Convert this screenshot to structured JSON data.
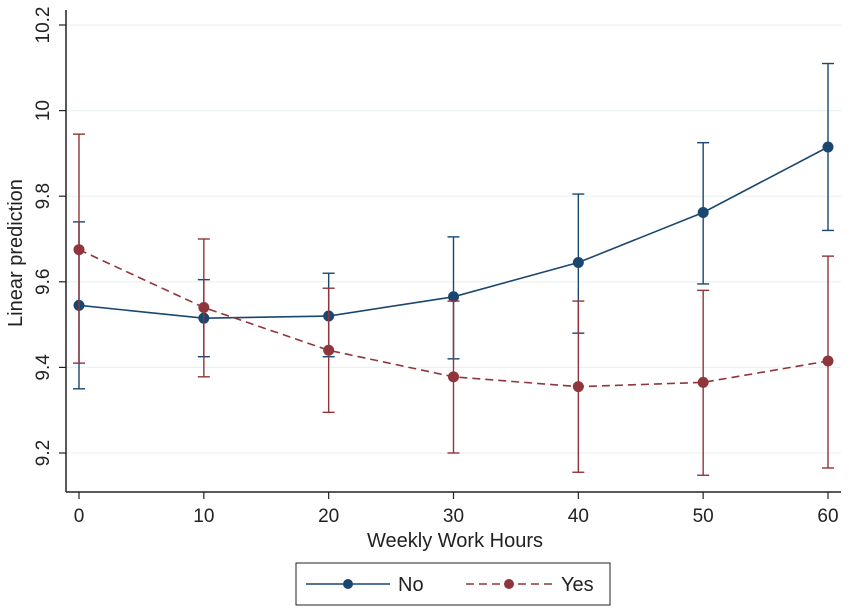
{
  "chart_data": {
    "type": "line",
    "title": "",
    "xlabel": "Weekly Work Hours",
    "ylabel": "Linear prediction",
    "x": [
      0,
      10,
      20,
      30,
      40,
      50,
      60
    ],
    "xlim": [
      0,
      60
    ],
    "ylim": [
      9.1,
      10.2
    ],
    "xticks": [
      "0",
      "10",
      "20",
      "30",
      "40",
      "50",
      "60"
    ],
    "yticks": [
      "9.2",
      "9.4",
      "9.6",
      "9.8",
      "10",
      "10.2"
    ],
    "ytick_values": [
      9.2,
      9.4,
      9.6,
      9.8,
      10.0,
      10.2
    ],
    "grid": true,
    "legend_position": "bottom",
    "series": [
      {
        "name": "No",
        "color": "#1a476f",
        "line_style": "solid",
        "values": [
          9.545,
          9.515,
          9.52,
          9.565,
          9.645,
          9.762,
          9.915
        ],
        "ci_low": [
          9.35,
          9.425,
          9.425,
          9.42,
          9.48,
          9.595,
          9.72
        ],
        "ci_high": [
          9.74,
          9.605,
          9.62,
          9.705,
          9.805,
          9.925,
          10.11
        ]
      },
      {
        "name": "Yes",
        "color": "#90353b",
        "line_style": "dashed",
        "values": [
          9.675,
          9.54,
          9.44,
          9.378,
          9.355,
          9.365,
          9.415
        ],
        "ci_low": [
          9.41,
          9.378,
          9.295,
          9.2,
          9.155,
          9.148,
          9.165
        ],
        "ci_high": [
          9.945,
          9.7,
          9.585,
          9.555,
          9.555,
          9.58,
          9.66
        ]
      }
    ]
  }
}
